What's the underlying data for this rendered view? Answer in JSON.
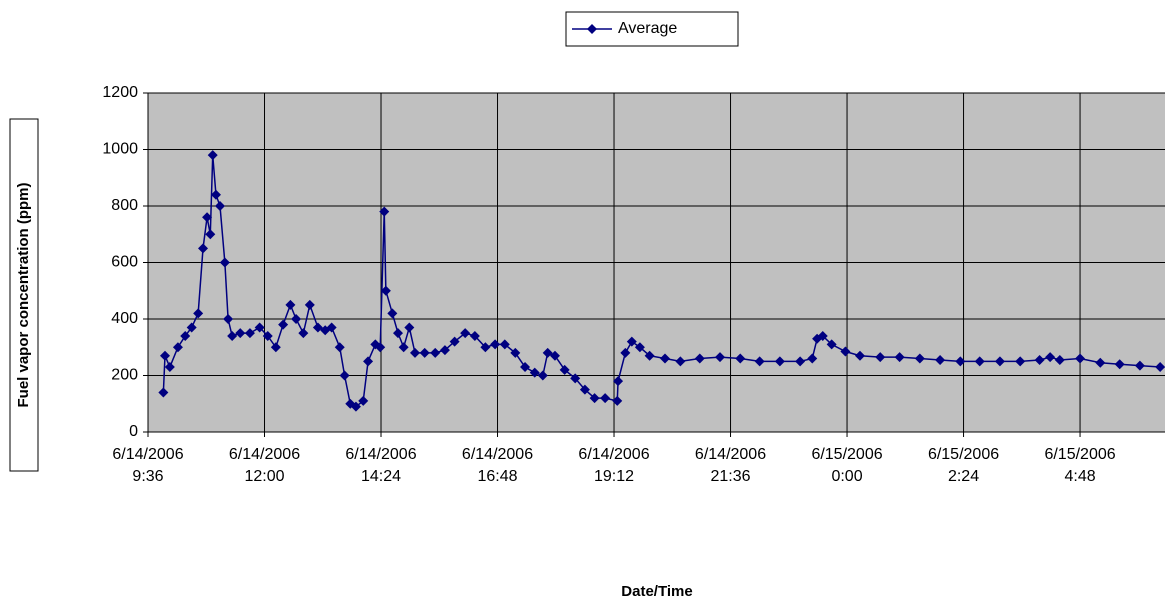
{
  "chart_data": {
    "type": "line",
    "x_label": "Date/Time",
    "y_label": "Fuel vapor concentration (ppm)",
    "x": [
      "6/14/2006 9:55",
      "6/14/2006 9:57",
      "6/14/2006 10:03",
      "6/14/2006 10:13",
      "6/14/2006 10:22",
      "6/14/2006 10:30",
      "6/14/2006 10:38",
      "6/14/2006 10:44",
      "6/14/2006 10:49",
      "6/14/2006 10:53",
      "6/14/2006 10:56",
      "6/14/2006 11:00",
      "6/14/2006 11:05",
      "6/14/2006 11:11",
      "6/14/2006 11:15",
      "6/14/2006 11:20",
      "6/14/2006 11:30",
      "6/14/2006 11:42",
      "6/14/2006 11:54",
      "6/14/2006 12:04",
      "6/14/2006 12:14",
      "6/14/2006 12:23",
      "6/14/2006 12:32",
      "6/14/2006 12:39",
      "6/14/2006 12:48",
      "6/14/2006 12:56",
      "6/14/2006 13:06",
      "6/14/2006 13:15",
      "6/14/2006 13:23",
      "6/14/2006 13:33",
      "6/14/2006 13:39",
      "6/14/2006 13:46",
      "6/14/2006 13:53",
      "6/14/2006 14:02",
      "6/14/2006 14:08",
      "6/14/2006 14:17",
      "6/14/2006 14:23",
      "6/14/2006 14:28",
      "6/14/2006 14:30",
      "6/14/2006 14:38",
      "6/14/2006 14:45",
      "6/14/2006 14:52",
      "6/14/2006 14:59",
      "6/14/2006 15:06",
      "6/14/2006 15:18",
      "6/14/2006 15:31",
      "6/14/2006 15:43",
      "6/14/2006 15:55",
      "6/14/2006 16:08",
      "6/14/2006 16:20",
      "6/14/2006 16:33",
      "6/14/2006 16:45",
      "6/14/2006 16:57",
      "6/14/2006 17:10",
      "6/14/2006 17:22",
      "6/14/2006 17:34",
      "6/14/2006 17:44",
      "6/14/2006 17:50",
      "6/14/2006 17:59",
      "6/14/2006 18:11",
      "6/14/2006 18:24",
      "6/14/2006 18:36",
      "6/14/2006 18:48",
      "6/14/2006 19:01",
      "6/14/2006 19:16",
      "6/14/2006 19:17",
      "6/14/2006 19:26",
      "6/14/2006 19:34",
      "6/14/2006 19:44",
      "6/14/2006 19:56",
      "6/14/2006 20:15",
      "6/14/2006 20:34",
      "6/14/2006 20:58",
      "6/14/2006 21:23",
      "6/14/2006 21:48",
      "6/14/2006 22:12",
      "6/14/2006 22:37",
      "6/14/2006 23:02",
      "6/14/2006 23:17",
      "6/14/2006 23:23",
      "6/14/2006 23:30",
      "6/14/2006 23:41",
      "6/14/2006 23:58",
      "6/15/2006 0:16",
      "6/15/2006 0:41",
      "6/15/2006 1:05",
      "6/15/2006 1:30",
      "6/15/2006 1:55",
      "6/15/2006 2:20",
      "6/15/2006 2:44",
      "6/15/2006 3:09",
      "6/15/2006 3:34",
      "6/15/2006 3:58",
      "6/15/2006 4:11",
      "6/15/2006 4:23",
      "6/15/2006 4:48",
      "6/15/2006 5:13",
      "6/15/2006 5:37",
      "6/15/2006 6:02",
      "6/15/2006 6:27"
    ],
    "series": [
      {
        "name": "Average",
        "color": "#000080",
        "values": [
          140,
          270,
          230,
          300,
          340,
          370,
          420,
          650,
          760,
          700,
          980,
          840,
          800,
          600,
          400,
          340,
          350,
          350,
          370,
          340,
          300,
          380,
          450,
          400,
          350,
          450,
          370,
          360,
          370,
          300,
          200,
          100,
          90,
          110,
          250,
          310,
          300,
          780,
          500,
          420,
          350,
          300,
          370,
          280,
          280,
          280,
          290,
          320,
          350,
          340,
          300,
          310,
          310,
          280,
          230,
          210,
          200,
          280,
          270,
          220,
          190,
          150,
          120,
          120,
          110,
          180,
          280,
          320,
          300,
          270,
          260,
          250,
          260,
          265,
          260,
          250,
          250,
          250,
          260,
          330,
          340,
          310,
          285,
          270,
          265,
          265,
          260,
          255,
          250,
          250,
          250,
          250,
          255,
          265,
          255,
          260,
          245,
          240,
          235,
          230
        ]
      }
    ],
    "xlim": [
      "6/14/2006 9:36",
      "6/15/2006 6:33"
    ],
    "xticks": [
      "6/14/2006 9:36",
      "6/14/2006 12:00",
      "6/14/2006 14:24",
      "6/14/2006 16:48",
      "6/14/2006 19:12",
      "6/14/2006 21:36",
      "6/15/2006 0:00",
      "6/15/2006 2:24",
      "6/15/2006 4:48"
    ],
    "ylim": [
      0,
      1200
    ],
    "yticks": [
      0,
      200,
      400,
      600,
      800,
      1000,
      1200
    ],
    "grid": true,
    "legend": "top"
  }
}
